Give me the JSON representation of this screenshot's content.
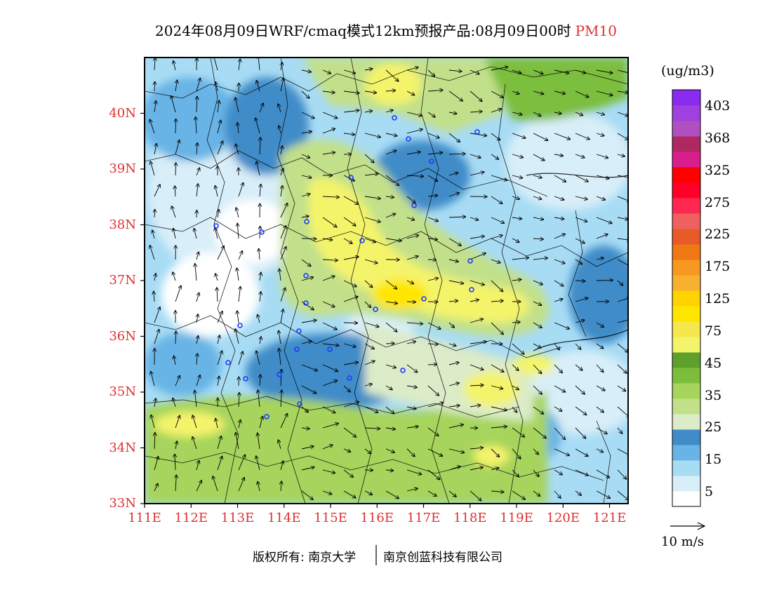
{
  "title": {
    "main": "2024年08月09日WRF/cmaq模式12km预报产品:08月09日00时",
    "pollutant": "PM10"
  },
  "map": {
    "lat_labels": [
      "40N",
      "39N",
      "38N",
      "37N",
      "36N",
      "35N",
      "34N",
      "33N"
    ],
    "lat_values": [
      40,
      39,
      38,
      37,
      36,
      35,
      34,
      33
    ],
    "lon_labels": [
      "111E",
      "112E",
      "113E",
      "114E",
      "115E",
      "116E",
      "117E",
      "118E",
      "119E",
      "120E",
      "121E"
    ],
    "lon_values": [
      111,
      112,
      113,
      114,
      115,
      116,
      117,
      118,
      119,
      120,
      121
    ],
    "lat_range": [
      33,
      41
    ],
    "lon_range": [
      111,
      121.4
    ]
  },
  "colorbar": {
    "unit": "(ug/m3)",
    "labels": [
      "403",
      "368",
      "325",
      "275",
      "225",
      "175",
      "125",
      "75",
      "45",
      "35",
      "25",
      "15",
      "5"
    ],
    "colors": [
      "#ffffff",
      "#d8eef8",
      "#a8dcf5",
      "#68b4e6",
      "#3f8cc8",
      "#dcebc8",
      "#c2e08a",
      "#a6d45c",
      "#7cbe3c",
      "#5ea02c",
      "#f4f46a",
      "#f4e84c",
      "#ffe600",
      "#ffd200",
      "#f8b030",
      "#f89820",
      "#f07814",
      "#e85a28",
      "#f06060",
      "#ff2850",
      "#ff0028",
      "#ff0000",
      "#d61e8c",
      "#b02860",
      "#b050c0",
      "#a040e0",
      "#8a2cf0"
    ]
  },
  "wind_legend": {
    "label": "10 m/s"
  },
  "credit": {
    "left": "版权所有: 南京大学",
    "right": "南京创蓝科技有限公司"
  }
}
